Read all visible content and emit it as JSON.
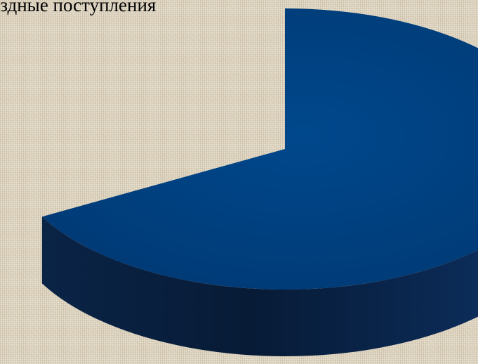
{
  "chart_data": {
    "type": "pie",
    "title": "ездные поступления",
    "slices": [
      {
        "value": 67,
        "color": "#003f7d"
      },
      {
        "value": 33,
        "color": null
      }
    ],
    "style": "3d",
    "start_angle_deg": -90
  }
}
